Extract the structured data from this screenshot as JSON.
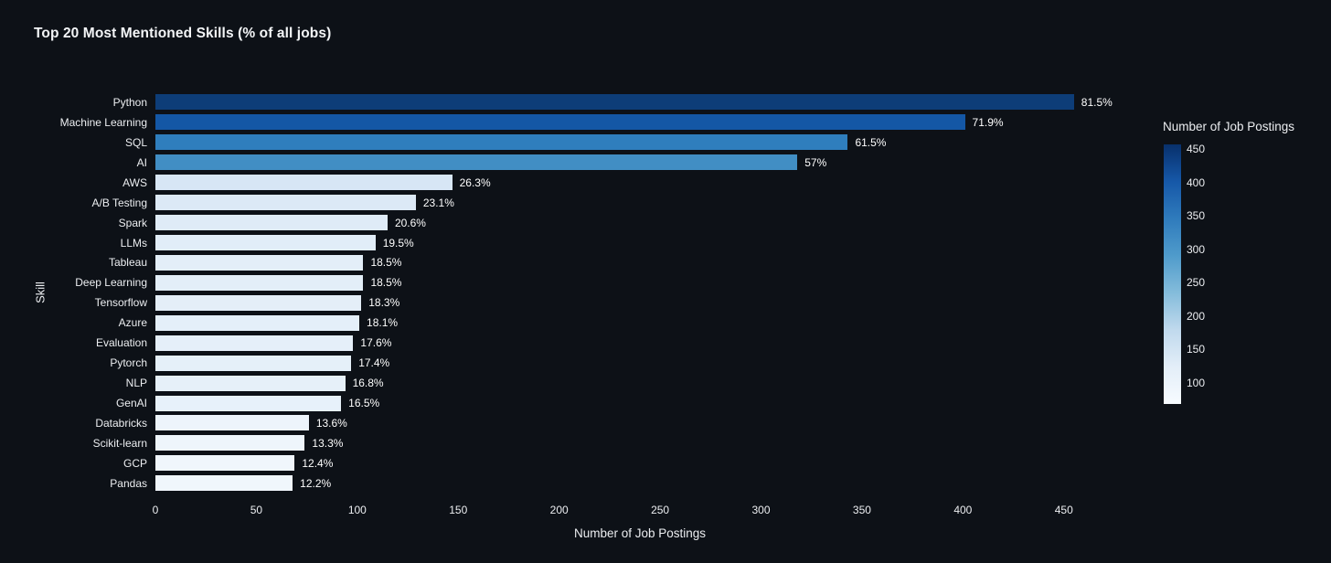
{
  "title": "Top 20 Most Mentioned Skills (% of all jobs)",
  "colors": {
    "background": "#0d1117",
    "text": "#eceef1",
    "value_label": "#ffffff"
  },
  "chart_data": {
    "type": "bar",
    "orientation": "horizontal",
    "title": "Top 20 Most Mentioned Skills (% of all jobs)",
    "xlabel": "Number of Job Postings",
    "ylabel": "Skill",
    "grid": false,
    "x_ticks": [
      0,
      50,
      100,
      150,
      200,
      250,
      300,
      350,
      400,
      450
    ],
    "x_max": 480,
    "categories": [
      "Python",
      "Machine Learning",
      "SQL",
      "AI",
      "AWS",
      "A/B Testing",
      "Spark",
      "LLMs",
      "Tableau",
      "Deep Learning",
      "Tensorflow",
      "Azure",
      "Evaluation",
      "Pytorch",
      "NLP",
      "GenAI",
      "Databricks",
      "Scikit-learn",
      "GCP",
      "Pandas"
    ],
    "values": [
      455,
      401,
      343,
      318,
      147,
      129,
      115,
      109,
      103,
      103,
      102,
      101,
      98,
      97,
      94,
      92,
      76,
      74,
      69,
      68
    ],
    "bar_labels": [
      "81.5%",
      "71.9%",
      "61.5%",
      "57%",
      "26.3%",
      "23.1%",
      "20.6%",
      "19.5%",
      "18.5%",
      "18.5%",
      "18.3%",
      "18.1%",
      "17.6%",
      "17.4%",
      "16.8%",
      "16.5%",
      "13.6%",
      "13.3%",
      "12.4%",
      "12.2%"
    ],
    "bar_colors": [
      "#0d3d78",
      "#1457a5",
      "#2f7ebd",
      "#418ec4",
      "#d7e6f5",
      "#dce9f6",
      "#dfebf7",
      "#e1edf8",
      "#e3eef8",
      "#e3eef8",
      "#e4eef8",
      "#e4eff9",
      "#e5eff9",
      "#e5f0f9",
      "#e6f0f9",
      "#e7f1fa",
      "#edf4fb",
      "#eef5fb",
      "#f0f6fc",
      "#f0f6fc"
    ],
    "colorbar": {
      "title": "Number of Job Postings",
      "ticks": [
        450,
        400,
        350,
        300,
        250,
        200,
        150,
        100
      ],
      "top_value": 457,
      "bottom_value": 68,
      "gradient": [
        "#08306b",
        "#1658a8",
        "#2f7bbc",
        "#4f9bcb",
        "#84bcdb",
        "#c0d9ed",
        "#e3eef8",
        "#f7fbff"
      ]
    }
  }
}
